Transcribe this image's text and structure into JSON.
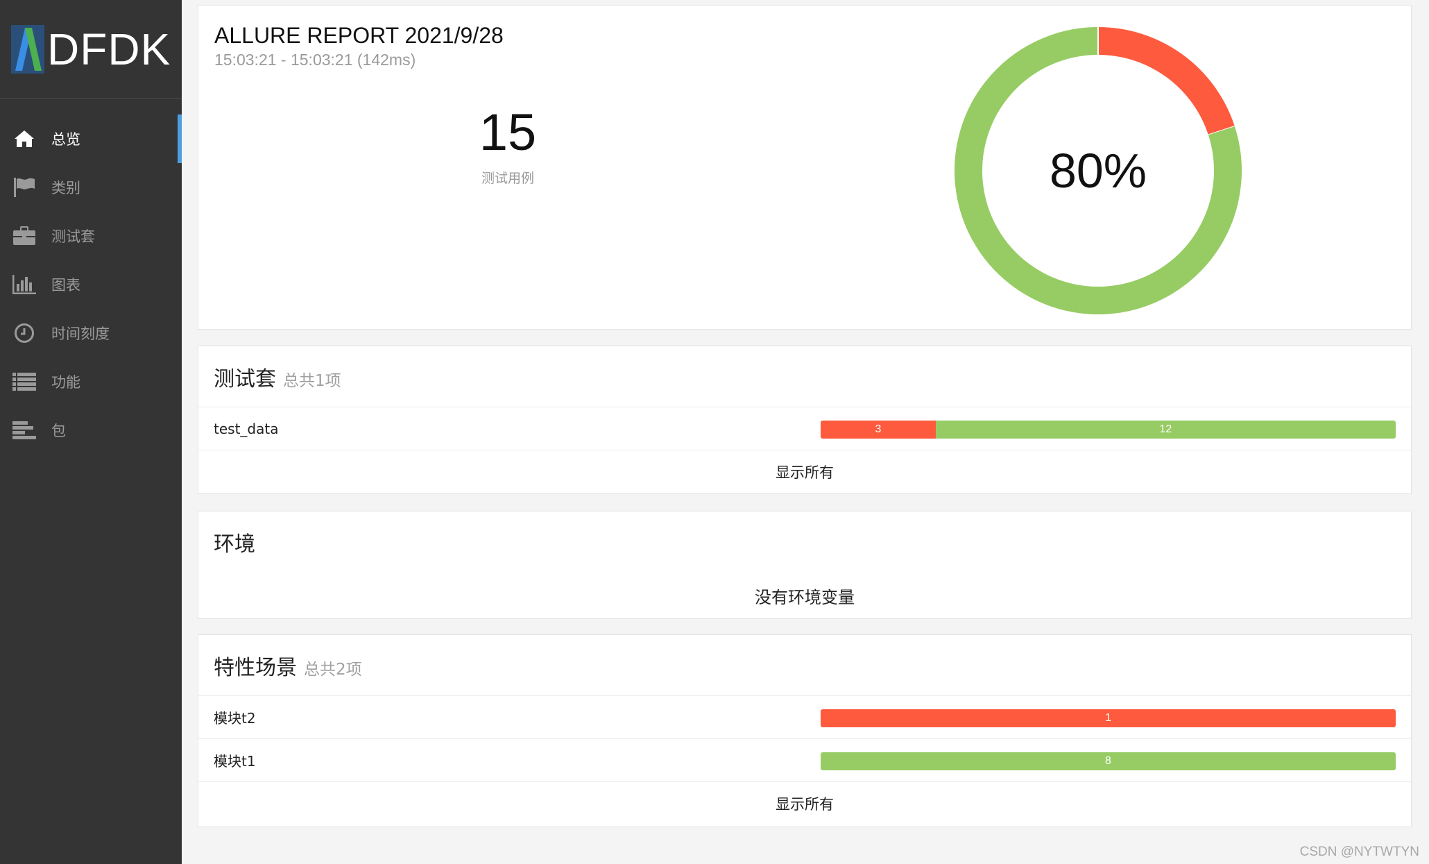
{
  "brand": {
    "name": "DFDK",
    "logo_icon": "brand-logo-icon"
  },
  "sidebar": {
    "items": [
      {
        "label": "总览",
        "icon": "home-icon",
        "active": true
      },
      {
        "label": "类别",
        "icon": "flag-icon",
        "active": false
      },
      {
        "label": "测试套",
        "icon": "briefcase-icon",
        "active": false
      },
      {
        "label": "图表",
        "icon": "bar-chart-icon",
        "active": false
      },
      {
        "label": "时间刻度",
        "icon": "clock-icon",
        "active": false
      },
      {
        "label": "功能",
        "icon": "list-icon",
        "active": false
      },
      {
        "label": "包",
        "icon": "align-left-icon",
        "active": false
      }
    ]
  },
  "summary": {
    "title": "ALLURE REPORT 2021/9/28",
    "time_range": "15:03:21 - 15:03:21 (142ms)",
    "testcase_count": "15",
    "testcase_label": "测试用例",
    "success_rate_label": "80%",
    "donut": {
      "passed": 12,
      "failed": 3
    }
  },
  "suites": {
    "title": "测试套",
    "subtitle": "总共1项",
    "rows": [
      {
        "name": "test_data",
        "failed": "3",
        "passed": "12"
      }
    ],
    "show_all": "显示所有"
  },
  "environment": {
    "title": "环境",
    "empty_text": "没有环境变量"
  },
  "features": {
    "title": "特性场景",
    "subtitle": "总共2项",
    "rows": [
      {
        "name": "模块t2",
        "failed": "1"
      },
      {
        "name": "模块t1",
        "passed": "8"
      }
    ],
    "show_all": "显示所有"
  },
  "colors": {
    "sidebar_bg": "#343434",
    "active_indicator": "#4e9fe0",
    "failed": "#fd5a3e",
    "passed": "#97cc64"
  },
  "watermark": "CSDN @NYTWTYN"
}
